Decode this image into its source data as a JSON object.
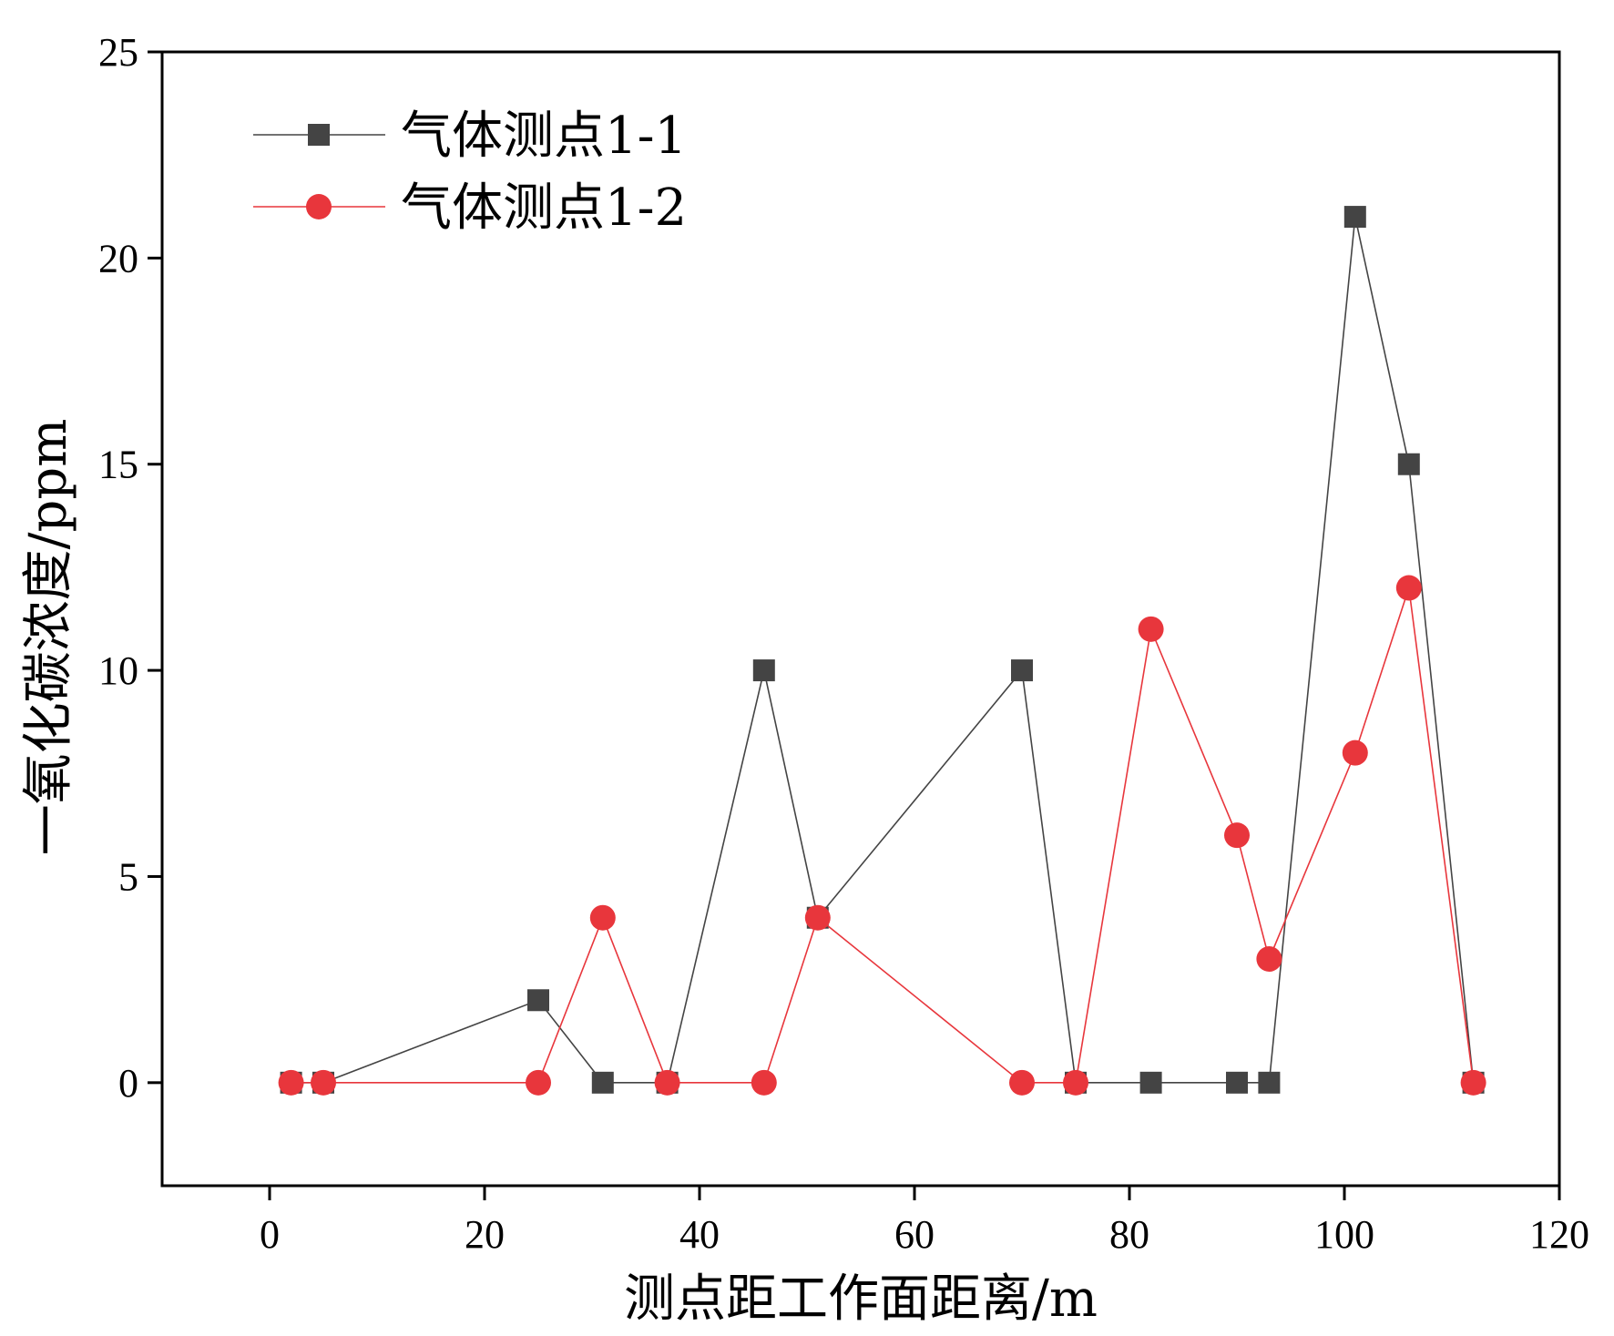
{
  "chart_data": {
    "type": "line",
    "xlabel": "测点距工作面距离/m",
    "ylabel": "一氧化碳浓度/ppm",
    "xlim": [
      -10,
      120
    ],
    "ylim": [
      -2.5,
      25
    ],
    "xticks": [
      0,
      20,
      40,
      60,
      80,
      100,
      120
    ],
    "yticks": [
      0,
      5,
      10,
      15,
      20,
      25
    ],
    "grid": false,
    "legend_position": "top-left",
    "series": [
      {
        "name": "气体测点1-1",
        "marker": "square",
        "color": "#444444",
        "x": [
          2,
          5,
          25,
          31,
          37,
          46,
          51,
          70,
          75,
          82,
          90,
          93,
          101,
          106,
          112
        ],
        "y": [
          0,
          0,
          2,
          0,
          0,
          10,
          4,
          10,
          0,
          0,
          0,
          0,
          21,
          15,
          0
        ]
      },
      {
        "name": "气体测点1-2",
        "marker": "circle",
        "color": "#e8363c",
        "x": [
          2,
          5,
          25,
          31,
          37,
          46,
          51,
          70,
          75,
          82,
          90,
          93,
          101,
          106,
          112
        ],
        "y": [
          0,
          0,
          0,
          4,
          0,
          0,
          4,
          0,
          0,
          11,
          6,
          3,
          8,
          12,
          0
        ]
      }
    ]
  }
}
